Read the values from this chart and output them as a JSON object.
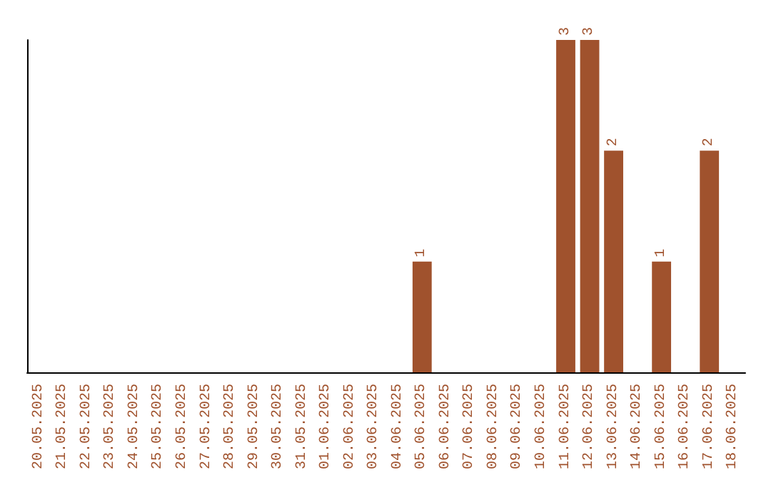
{
  "chart_data": {
    "type": "bar",
    "categories": [
      "20.05.2025",
      "21.05.2025",
      "22.05.2025",
      "23.05.2025",
      "24.05.2025",
      "25.05.2025",
      "26.05.2025",
      "27.05.2025",
      "28.05.2025",
      "29.05.2025",
      "30.05.2025",
      "31.05.2025",
      "01.06.2025",
      "02.06.2025",
      "03.06.2025",
      "04.06.2025",
      "05.06.2025",
      "06.06.2025",
      "07.06.2025",
      "08.06.2025",
      "09.06.2025",
      "10.06.2025",
      "11.06.2025",
      "12.06.2025",
      "13.06.2025",
      "14.06.2025",
      "15.06.2025",
      "16.06.2025",
      "17.06.2025",
      "18.06.2025"
    ],
    "values": [
      null,
      null,
      null,
      null,
      null,
      null,
      null,
      null,
      null,
      null,
      null,
      null,
      null,
      null,
      null,
      null,
      1,
      null,
      null,
      null,
      null,
      null,
      3,
      3,
      2,
      null,
      1,
      null,
      2,
      null
    ],
    "data_labels": true,
    "color": "#a0522d",
    "ylim": [
      0,
      3
    ],
    "tick_labels": "x",
    "grid": false
  }
}
